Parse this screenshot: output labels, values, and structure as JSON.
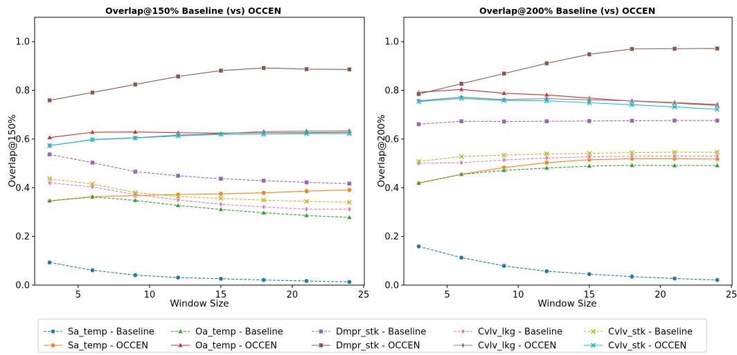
{
  "chart_data": [
    {
      "type": "line",
      "title": "Overlap@150% Baseline (vs) OCCEN",
      "xlabel": "Window Size",
      "ylabel": "Overlap@150%",
      "xlim": [
        1.95,
        25.05
      ],
      "ylim": [
        0,
        1.1
      ],
      "xticks": [
        5,
        10,
        15,
        20,
        25
      ],
      "yticks": [
        0.0,
        0.2,
        0.4,
        0.6,
        0.8,
        1.0
      ],
      "grid": false,
      "x": [
        3,
        6,
        9,
        12,
        15,
        18,
        21,
        24
      ],
      "series": [
        {
          "name": "Sa_temp - Baseline",
          "color": "#1f77b4",
          "dash": true,
          "marker": "circle",
          "values": [
            0.093,
            0.061,
            0.041,
            0.031,
            0.026,
            0.021,
            0.017,
            0.013
          ]
        },
        {
          "name": "Sa_temp - OCCEN",
          "color": "#ff7f0e",
          "dash": false,
          "marker": "circle",
          "values": [
            0.346,
            0.363,
            0.368,
            0.372,
            0.375,
            0.379,
            0.386,
            0.391
          ]
        },
        {
          "name": "Oa_temp - Baseline",
          "color": "#2ca02c",
          "dash": true,
          "marker": "triangle",
          "values": [
            0.346,
            0.362,
            0.348,
            0.327,
            0.311,
            0.297,
            0.286,
            0.278
          ]
        },
        {
          "name": "Oa_temp - OCCEN",
          "color": "#d62728",
          "dash": false,
          "marker": "triangle",
          "values": [
            0.606,
            0.628,
            0.629,
            0.626,
            0.624,
            0.626,
            0.626,
            0.628
          ]
        },
        {
          "name": "Dmpr_stk - Baseline",
          "color": "#9467bd",
          "dash": true,
          "marker": "square",
          "values": [
            0.537,
            0.503,
            0.466,
            0.449,
            0.437,
            0.429,
            0.422,
            0.417
          ]
        },
        {
          "name": "Dmpr_stk - OCCEN",
          "color": "#8c564b",
          "dash": false,
          "marker": "square",
          "values": [
            0.759,
            0.791,
            0.824,
            0.857,
            0.881,
            0.892,
            0.887,
            0.886
          ]
        },
        {
          "name": "Cvlv_lkg - Baseline",
          "color": "#e377c2",
          "dash": true,
          "marker": "diamond",
          "values": [
            0.42,
            0.403,
            0.372,
            0.35,
            0.332,
            0.321,
            0.312,
            0.312
          ]
        },
        {
          "name": "Cvlv_lkg - OCCEN",
          "color": "#7f7f7f",
          "dash": false,
          "marker": "diamond",
          "values": [
            0.573,
            0.598,
            0.605,
            0.616,
            0.622,
            0.631,
            0.633,
            0.634
          ]
        },
        {
          "name": "Cvlv_stk - Baseline",
          "color": "#bcbd22",
          "dash": true,
          "marker": "x",
          "values": [
            0.437,
            0.415,
            0.38,
            0.364,
            0.356,
            0.349,
            0.344,
            0.34
          ]
        },
        {
          "name": "Cvlv_stk - OCCEN",
          "color": "#17becf",
          "dash": false,
          "marker": "x",
          "values": [
            0.573,
            0.597,
            0.604,
            0.613,
            0.619,
            0.62,
            0.622,
            0.622
          ]
        }
      ]
    },
    {
      "type": "line",
      "title": "Overlap@200% Baseline (vs) OCCEN",
      "xlabel": "Window Size",
      "ylabel": "Overlap@200%",
      "xlim": [
        1.95,
        25.05
      ],
      "ylim": [
        0,
        1.1
      ],
      "xticks": [
        5,
        10,
        15,
        20,
        25
      ],
      "yticks": [
        0.0,
        0.2,
        0.4,
        0.6,
        0.8,
        1.0
      ],
      "grid": false,
      "x": [
        3,
        6,
        9,
        12,
        15,
        18,
        21,
        24
      ],
      "series": [
        {
          "name": "Sa_temp - Baseline",
          "color": "#1f77b4",
          "dash": true,
          "marker": "circle",
          "values": [
            0.159,
            0.113,
            0.079,
            0.057,
            0.045,
            0.035,
            0.027,
            0.021
          ]
        },
        {
          "name": "Sa_temp - OCCEN",
          "color": "#ff7f0e",
          "dash": false,
          "marker": "circle",
          "values": [
            0.419,
            0.455,
            0.483,
            0.503,
            0.515,
            0.519,
            0.519,
            0.518
          ]
        },
        {
          "name": "Oa_temp - Baseline",
          "color": "#2ca02c",
          "dash": true,
          "marker": "triangle",
          "values": [
            0.419,
            0.455,
            0.471,
            0.481,
            0.489,
            0.492,
            0.491,
            0.491
          ]
        },
        {
          "name": "Oa_temp - OCCEN",
          "color": "#d62728",
          "dash": false,
          "marker": "triangle",
          "values": [
            0.792,
            0.804,
            0.788,
            0.781,
            0.768,
            0.756,
            0.748,
            0.738
          ]
        },
        {
          "name": "Dmpr_stk - Baseline",
          "color": "#9467bd",
          "dash": true,
          "marker": "square",
          "values": [
            0.661,
            0.673,
            0.672,
            0.673,
            0.674,
            0.675,
            0.676,
            0.676
          ]
        },
        {
          "name": "Dmpr_stk - OCCEN",
          "color": "#8c564b",
          "dash": false,
          "marker": "square",
          "values": [
            0.785,
            0.827,
            0.869,
            0.911,
            0.948,
            0.97,
            0.971,
            0.972
          ]
        },
        {
          "name": "Cvlv_lkg - Baseline",
          "color": "#e377c2",
          "dash": true,
          "marker": "diamond",
          "values": [
            0.5,
            0.503,
            0.514,
            0.522,
            0.527,
            0.53,
            0.53,
            0.53
          ]
        },
        {
          "name": "Cvlv_lkg - OCCEN",
          "color": "#7f7f7f",
          "dash": false,
          "marker": "diamond",
          "values": [
            0.757,
            0.772,
            0.762,
            0.766,
            0.761,
            0.757,
            0.75,
            0.742
          ]
        },
        {
          "name": "Cvlv_stk - Baseline",
          "color": "#bcbd22",
          "dash": true,
          "marker": "x",
          "values": [
            0.508,
            0.528,
            0.534,
            0.539,
            0.541,
            0.544,
            0.546,
            0.546
          ]
        },
        {
          "name": "Cvlv_stk - OCCEN",
          "color": "#17becf",
          "dash": false,
          "marker": "x",
          "values": [
            0.754,
            0.767,
            0.758,
            0.757,
            0.749,
            0.741,
            0.732,
            0.722
          ]
        }
      ]
    }
  ],
  "legend": {
    "placement": "bottom-center",
    "columns": 5,
    "entries": [
      "Sa_temp - Baseline",
      "Sa_temp - OCCEN",
      "Oa_temp - Baseline",
      "Oa_temp - OCCEN",
      "Dmpr_stk - Baseline",
      "Dmpr_stk - OCCEN",
      "Cvlv_lkg - Baseline",
      "Cvlv_lkg - OCCEN",
      "Cvlv_stk - Baseline",
      "Cvlv_stk - OCCEN"
    ]
  }
}
